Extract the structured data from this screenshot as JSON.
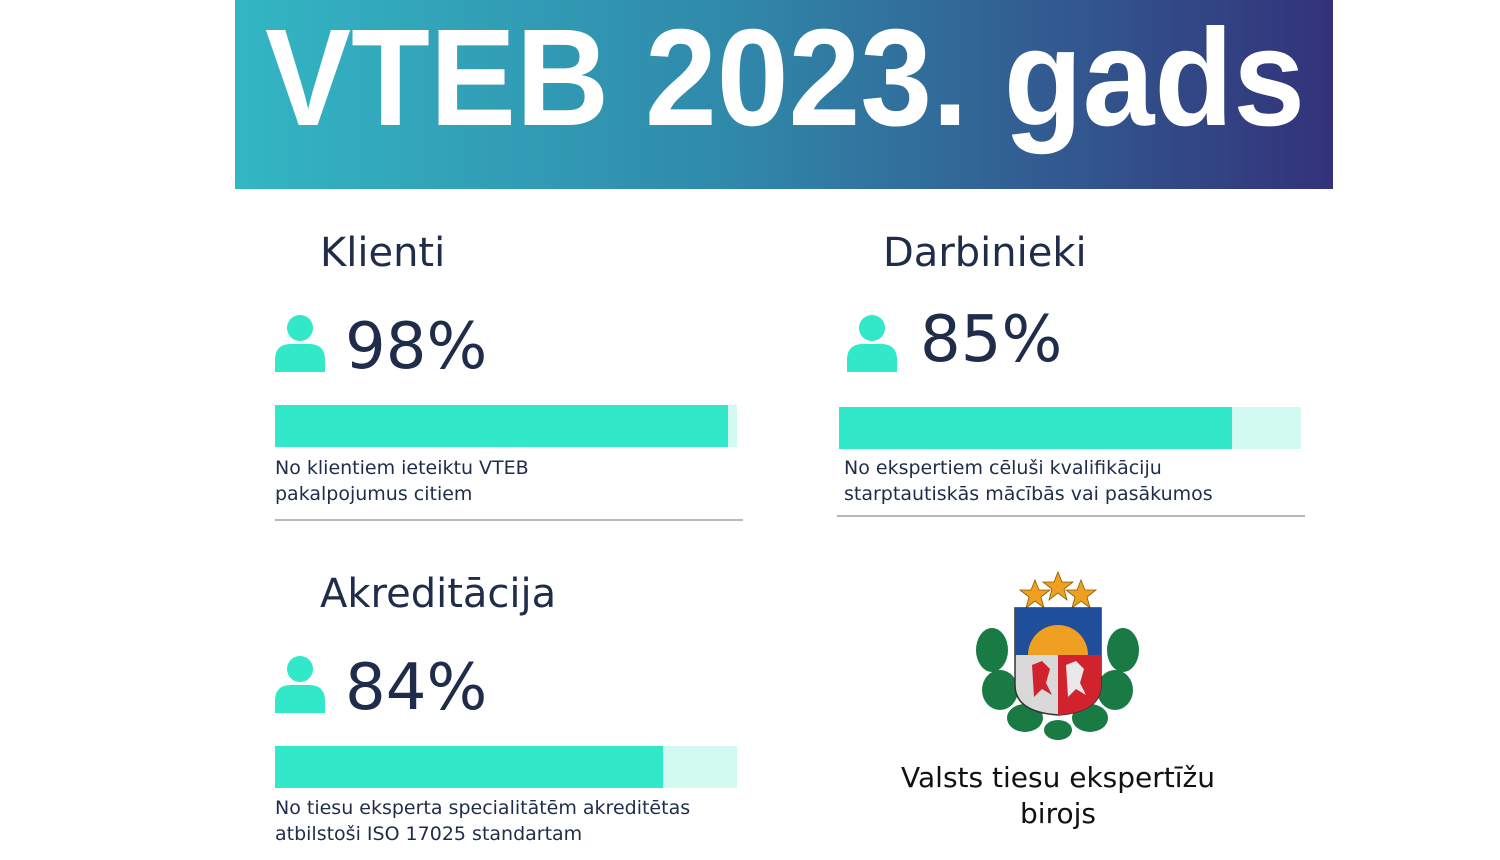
{
  "banner": {
    "title": "VTEB 2023. gads"
  },
  "colors": {
    "accent": "#31e8c8",
    "accent_light": "#d3faf1",
    "text": "#1f2d4a",
    "gradient_start": "#33b6c4",
    "gradient_end": "#33327a"
  },
  "stats": [
    {
      "title": "Klienti",
      "value": "98%",
      "percent": 98,
      "icon": "person-icon",
      "description_line1": "No klientiem ieteiktu VTEB",
      "description_line2": "pakalpojumus citiem"
    },
    {
      "title": "Darbinieki",
      "value": "85%",
      "percent": 85,
      "icon": "person-icon",
      "description_line1": "No ekspertiem cēluši kvalifikāciju",
      "description_line2": "starptautiskās mācībās vai pasākumos"
    },
    {
      "title": "Akreditācija",
      "value": "84%",
      "percent": 84,
      "icon": "person-icon",
      "description_line1": "No tiesu eksperta specialitātēm akreditētas",
      "description_line2": "atbilstoši ISO 17025 standartam"
    }
  ],
  "organization": {
    "name_line1": "Valsts tiesu ekspertīžu",
    "name_line2": "birojs",
    "logo": "latvia-coat-of-arms"
  }
}
